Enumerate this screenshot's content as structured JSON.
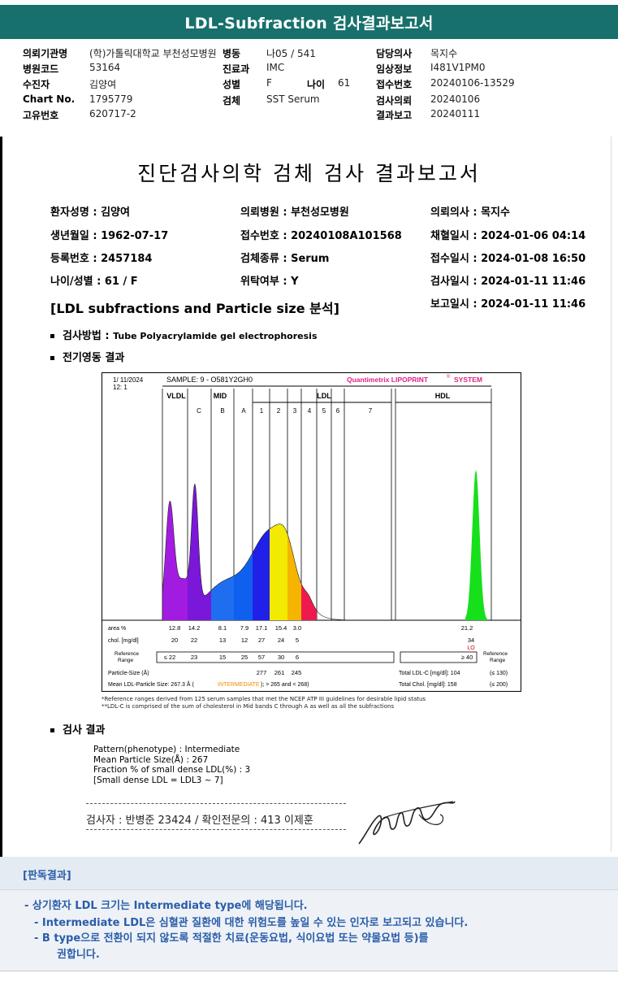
{
  "banner": {
    "title": "LDL-Subfraction 검사결과보고서"
  },
  "header": {
    "col1": [
      {
        "label": "의뢰기관명",
        "value": "(학)가톨릭대학교 부천성모병원"
      },
      {
        "label": "병원코드",
        "value": "53164"
      },
      {
        "label": "수진자",
        "value": "김양여"
      },
      {
        "label": "Chart No.",
        "value": "1795779"
      },
      {
        "label": "고유번호",
        "value": "620717-2"
      }
    ],
    "col2": [
      {
        "label": "병동",
        "value": "나05 / 541"
      },
      {
        "label": "진료과",
        "value": "IMC"
      },
      {
        "label": "성별",
        "value": "F"
      },
      {
        "label": "검체",
        "value": "SST Serum"
      }
    ],
    "age_label": "나이",
    "age_value": "61",
    "col3": [
      {
        "label": "담당의사",
        "value": "목지수"
      },
      {
        "label": "임상정보",
        "value": "I481V1PM0"
      },
      {
        "label": "접수번호",
        "value": "20240106-13529"
      },
      {
        "label": "검사의뢰",
        "value": "20240106"
      },
      {
        "label": "결과보고",
        "value": "20240111"
      }
    ]
  },
  "doc": {
    "title": "진단검사의학 검체 검사 결과보고서",
    "info": {
      "patient_name": "환자성명 : 김양여",
      "birth": "생년월일 : 1962-07-17",
      "reg_no": "등록번호 : 2457184",
      "age_sex": "나이/성별 : 61 / F",
      "hospital": "의뢰병원 : 부천성모병원",
      "receipt": "접수번호 : 20240108A101568",
      "specimen": "검체종류 : Serum",
      "outsourced": "위탁여부 : Y",
      "doctor": "의뢰의사 : 목지수",
      "collect": "채혈일시 : 2024-01-06 04:14",
      "received": "접수일시 : 2024-01-08 16:50",
      "tested": "검사일시 : 2024-01-11 11:46",
      "reported": "보고일시 : 2024-01-11 11:46"
    },
    "section_title": "[LDL subfractions and Particle size 분석]",
    "method_label": "검사방법 :",
    "method_value": "Tube Polyacrylamide gel electrophoresis",
    "electro_label": "전기영동 결과",
    "result_label": "검사 결과",
    "results": [
      "Pattern(phenotype) : Intermediate",
      "Mean Particle Size(Å) : 267",
      "Fraction % of small dense LDL(%) : 3",
      "[Small dense LDL = LDL3 ~ 7]"
    ],
    "signature_line": "검사자 : 반병준  23424  /  확인전문의 : 413  이제훈"
  },
  "chart_data": {
    "type": "area",
    "header_date": "1/ 11/2024",
    "header_id": "12:  1",
    "sample": "SAMPLE:  9 - O581Y2GH0",
    "brand": "Quantimetrix LIPOPRINT",
    "brand_sup": "®",
    "brand_system": "SYSTEM",
    "groups": [
      "VLDL",
      "MID",
      "LDL",
      "HDL"
    ],
    "bands": [
      "C",
      "B",
      "A",
      "1",
      "2",
      "3",
      "4",
      "5",
      "6",
      "7"
    ],
    "rows": {
      "area_label": "area %",
      "area_values": [
        "12.8",
        "14.2",
        "8.1",
        "7.9",
        "17.1",
        "15.4",
        "3.0"
      ],
      "area_hdl": "21.2",
      "chol_label": "chol. [mg/dl]",
      "chol_values": [
        "20",
        "22",
        "13",
        "12",
        "27",
        "24",
        "5"
      ],
      "chol_hdl": "34",
      "chol_hdl_flag": "LO",
      "ref_label": "Reference Range",
      "ref_values": [
        "≤  22",
        "23",
        "15",
        "25",
        "57",
        "30",
        "6"
      ],
      "ref_hdl": "≥ 40",
      "ref_right": "Reference Range",
      "psize_label": "Particle-Size (Å)",
      "psize_values": [
        "277",
        "261",
        "245"
      ],
      "total_ldl": "Total LDL-C [mg/dl]:  104",
      "total_ldl_ref": "(≤ 130)",
      "mean_ldl_prefix": "Mean LDL-Particle Size:   267.3 Å  (",
      "mean_ldl_flag": "INTERMEDIATE",
      "mean_ldl_suffix": "); > 265 and < 268)",
      "total_chol": "Total Chol. [mg/dl]:   158",
      "total_chol_ref": "(≤ 200)"
    },
    "notes": [
      "*Reference ranges derived from 125 serum samples that met the NCEP ATP III guidelines for desirable lipid status",
      "**LDL-C is comprised of the sum of cholesterol in Mid bands C through A as well as all the subfractions"
    ],
    "colors": {
      "vldl": "#a21be0",
      "c": "#7a17d9",
      "b": "#1f6ef0",
      "a": "#1060f0",
      "l1": "#2020e8",
      "l2": "#f2ea00",
      "l3": "#f5b400",
      "l4": "#ee1a4e",
      "hdl": "#16e01c",
      "brand": "#e0228a"
    }
  },
  "judgement": {
    "title": "[판독결과]",
    "lines": [
      "- 상기환자 LDL 크기는 Intermediate type에 해당됩니다.",
      "- Intermediate LDL은 심혈관 질환에 대한 위험도를 높일 수 있는 인자로 보고되고 있습니다.",
      "- B type으로 전환이 되지 않도록 적절한 치료(운동요법, 식이요법 또는 약물요법 등)를",
      "권합니다."
    ]
  }
}
